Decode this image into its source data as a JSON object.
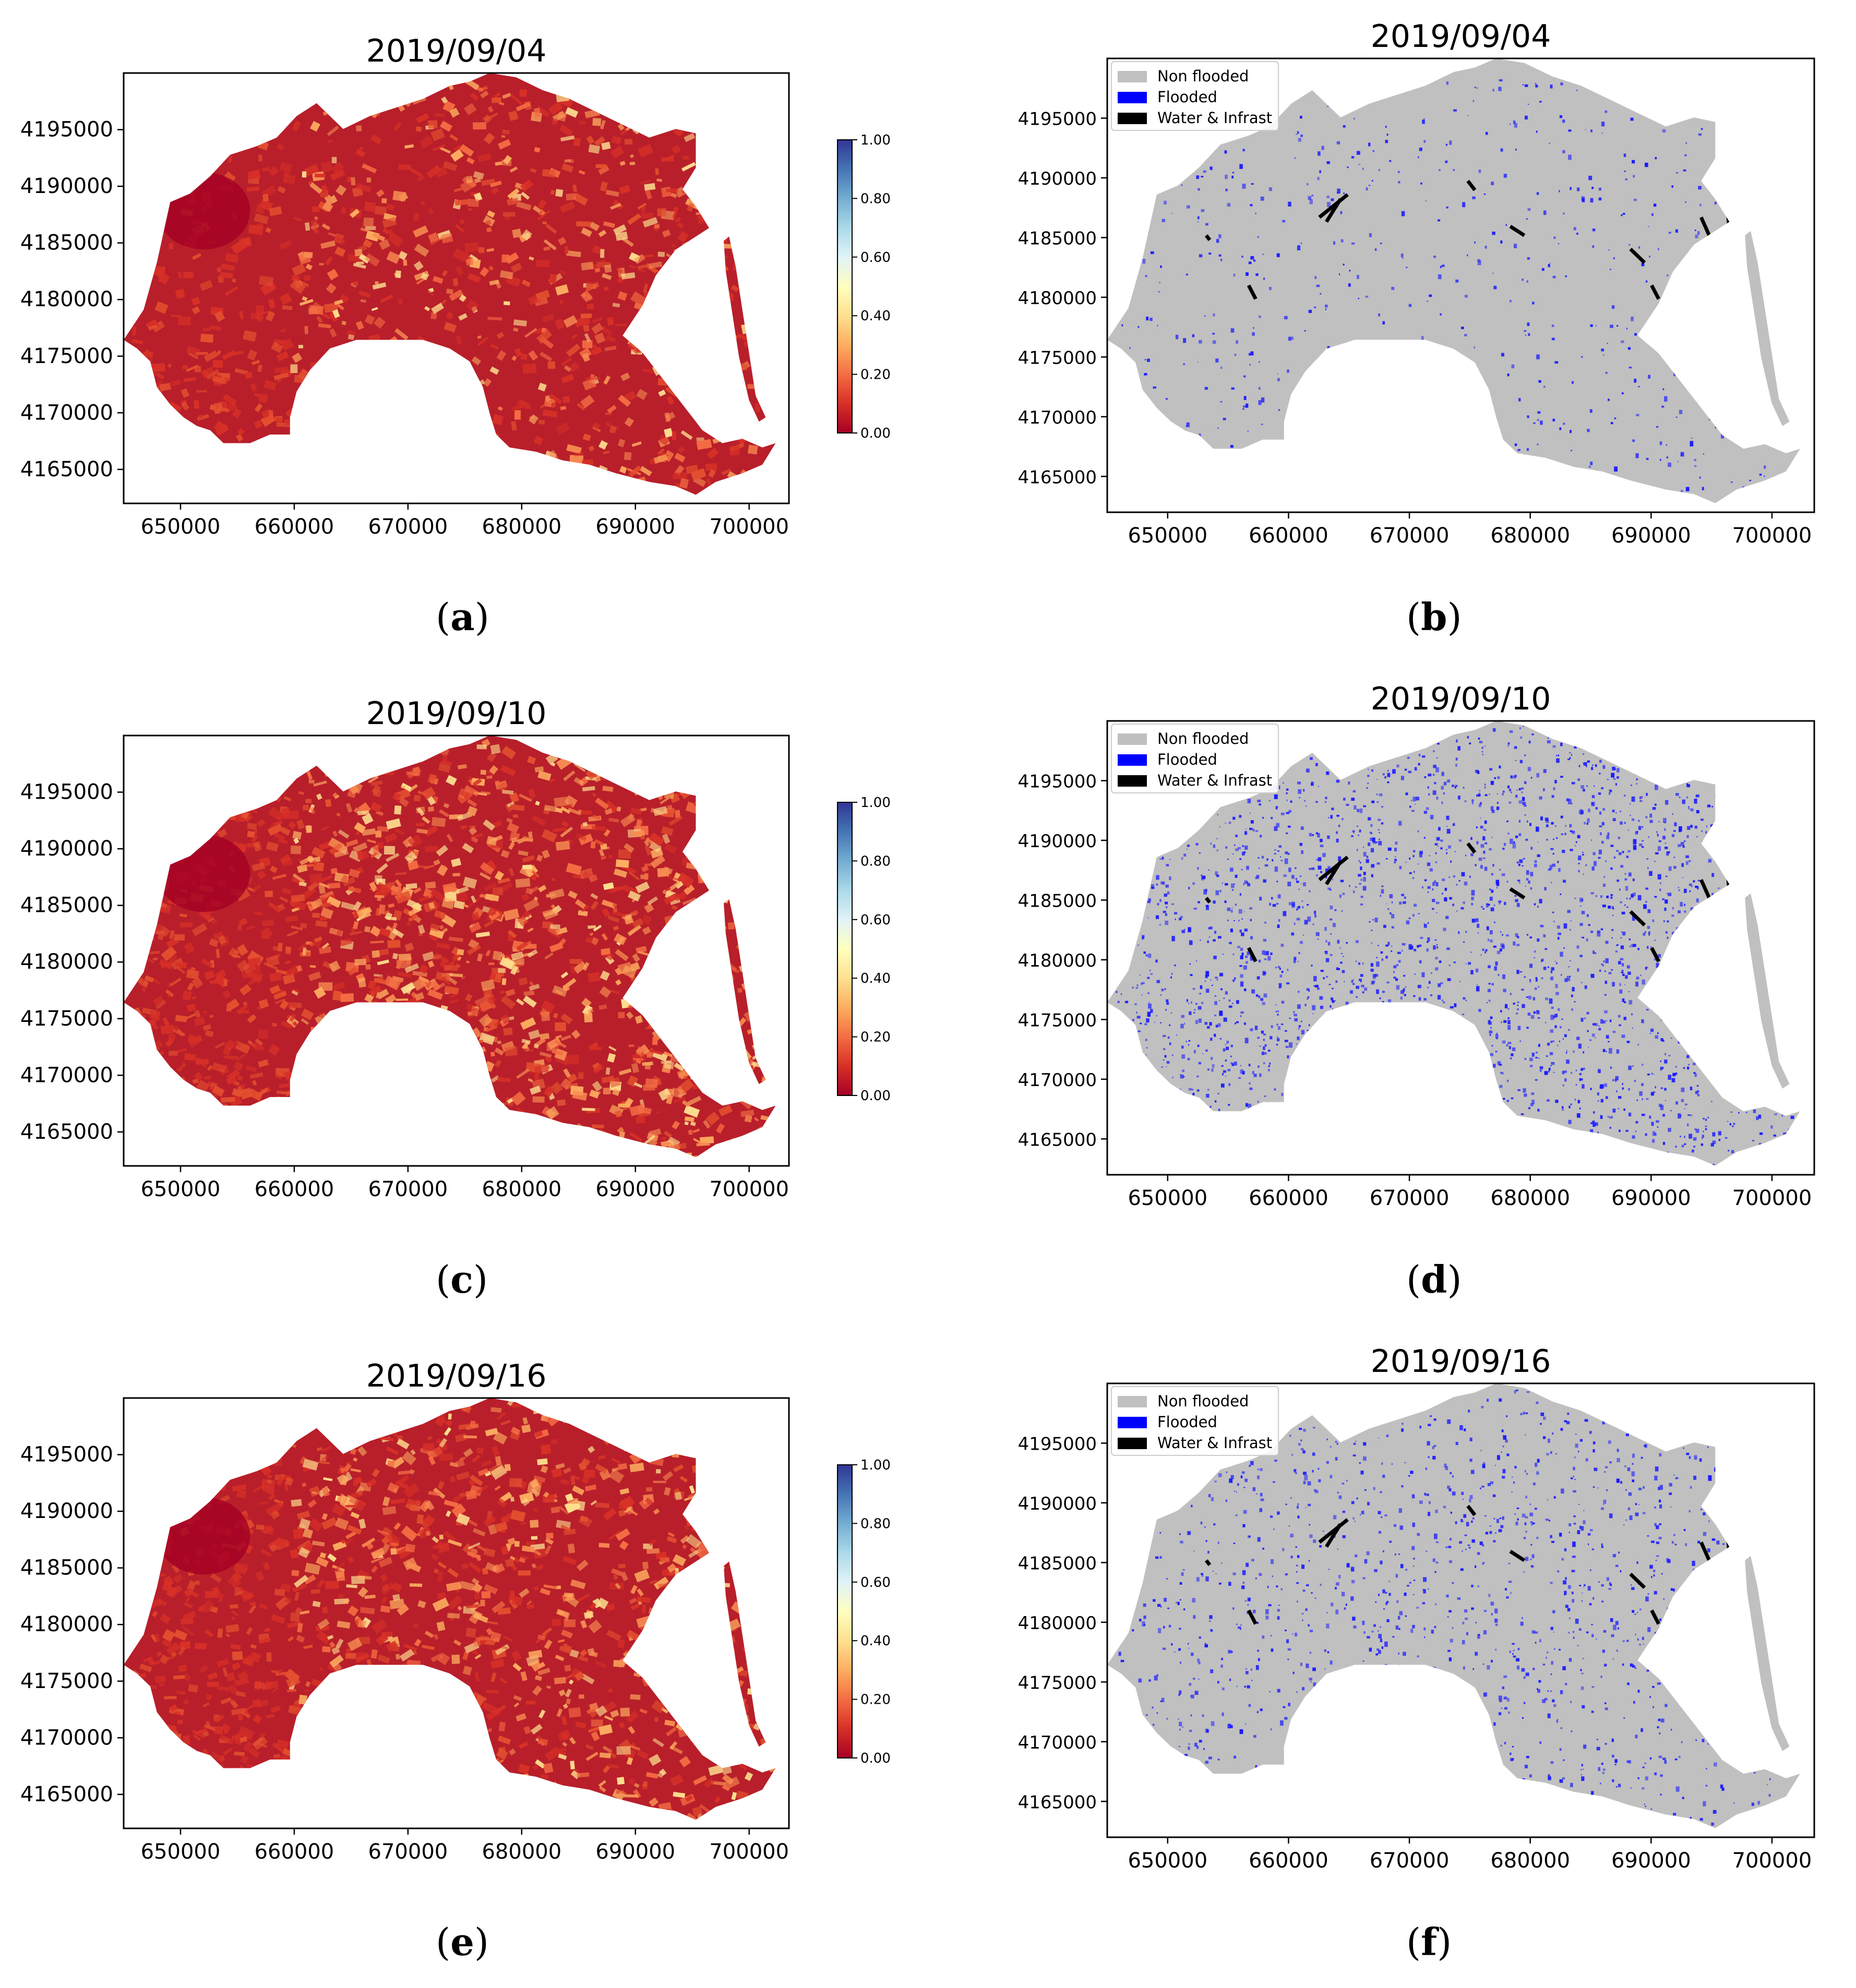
{
  "panels": [
    {
      "id": "a",
      "kind": "probability",
      "date": "2019/09/04",
      "caption": "a",
      "cmap_heat": 0.25
    },
    {
      "id": "b",
      "kind": "classified",
      "date": "2019/09/04",
      "caption": "b",
      "flood_fraction": 0.03
    },
    {
      "id": "c",
      "kind": "probability",
      "date": "2019/09/10",
      "caption": "c",
      "cmap_heat": 0.7
    },
    {
      "id": "d",
      "kind": "classified",
      "date": "2019/09/10",
      "caption": "d",
      "flood_fraction": 0.18
    },
    {
      "id": "e",
      "kind": "probability",
      "date": "2019/09/16",
      "caption": "e",
      "cmap_heat": 0.5
    },
    {
      "id": "f",
      "kind": "classified",
      "date": "2019/09/16",
      "caption": "f",
      "flood_fraction": 0.09
    }
  ],
  "axes": {
    "x_ticks": [
      "650000",
      "660000",
      "670000",
      "680000",
      "690000",
      "700000"
    ],
    "x_tick_values": [
      650000,
      660000,
      670000,
      680000,
      690000,
      700000
    ],
    "y_ticks": [
      "4195000",
      "4190000",
      "4185000",
      "4180000",
      "4175000",
      "4170000",
      "4165000"
    ],
    "y_tick_values": [
      4195000,
      4190000,
      4185000,
      4180000,
      4175000,
      4170000,
      4165000
    ],
    "xlim": [
      645000,
      703500
    ],
    "ylim_probability": [
      4162000,
      4200000
    ],
    "ylim_classified": [
      4162000,
      4200000
    ]
  },
  "colorbar": {
    "ticks": [
      "1.00",
      "0.80",
      "0.60",
      "0.40",
      "0.20",
      "0.00"
    ],
    "tick_values": [
      1.0,
      0.8,
      0.6,
      0.4,
      0.2,
      0.0
    ],
    "colors": [
      "#a50026",
      "#d73027",
      "#f46d43",
      "#fdae61",
      "#fee090",
      "#ffffbf",
      "#e0f3f8",
      "#abd9e9",
      "#74add1",
      "#4575b4",
      "#313695"
    ]
  },
  "legend": {
    "items": [
      {
        "label": "Non flooded",
        "color": "#c0c0c0"
      },
      {
        "label": "Flooded",
        "color": "#0000ff"
      },
      {
        "label": "Water & Infrast",
        "color": "#000000"
      }
    ]
  }
}
